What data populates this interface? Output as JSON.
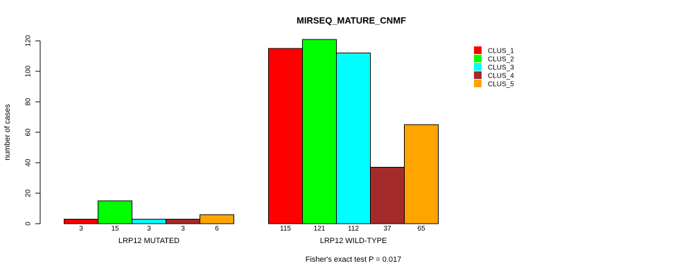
{
  "chart_data": {
    "type": "bar",
    "title": "MIRSEQ_MATURE_CNMF",
    "ylabel": "number of cases",
    "xlabel": "",
    "ylim": [
      0,
      120
    ],
    "yticks": [
      0,
      20,
      40,
      60,
      80,
      100,
      120
    ],
    "grid": false,
    "legend_position": "top-right",
    "plot_background": "#ffffff",
    "bar_border_color": "#000000",
    "categories": [
      "LRP12 MUTATED",
      "LRP12 WILD-TYPE"
    ],
    "series": [
      {
        "name": "CLUS_1",
        "color": "#ff0000",
        "values": [
          3,
          115
        ]
      },
      {
        "name": "CLUS_2",
        "color": "#00ff00",
        "values": [
          15,
          121
        ]
      },
      {
        "name": "CLUS_3",
        "color": "#00ffff",
        "values": [
          3,
          112
        ]
      },
      {
        "name": "CLUS_4",
        "color": "#a52a2a",
        "values": [
          3,
          37
        ]
      },
      {
        "name": "CLUS_5",
        "color": "#ffa500",
        "values": [
          6,
          65
        ]
      }
    ],
    "bar_value_labels": {
      "LRP12 MUTATED": [
        3,
        15,
        3,
        3,
        6
      ],
      "LRP12 WILD-TYPE": [
        115,
        121,
        112,
        37,
        65
      ]
    },
    "annotation": "Fisher's exact test P = 0.017"
  }
}
